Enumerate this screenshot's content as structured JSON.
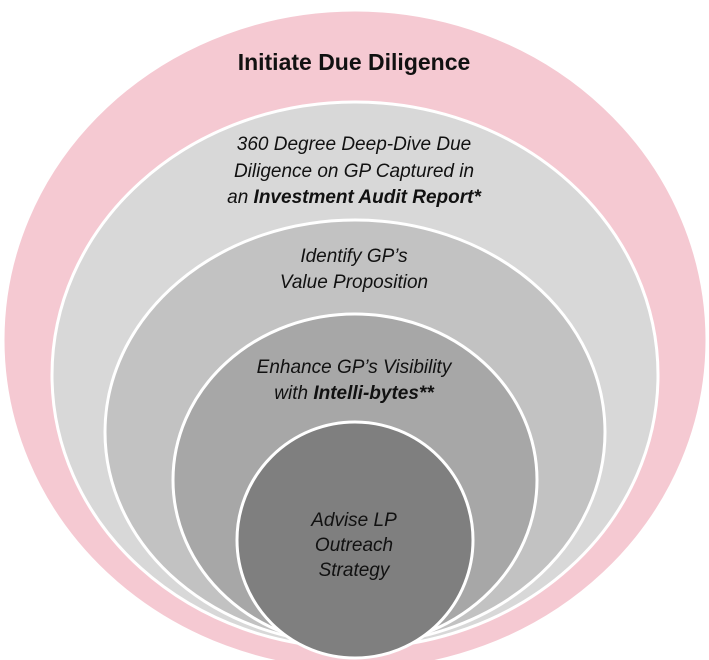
{
  "diagram": {
    "title": "Initiate Due Diligence",
    "layers": [
      {
        "id": "outer",
        "color": "#f5c9d2",
        "lines": [
          [
            {
              "text": "Initiate Due Diligence",
              "bold": true
            }
          ]
        ]
      },
      {
        "id": "deep-dive",
        "color": "#d8d8d8",
        "lines": [
          [
            {
              "text": "360 Degree Deep-Dive Due"
            }
          ],
          [
            {
              "text": "Diligence on GP Captured in"
            }
          ],
          [
            {
              "text": "an "
            },
            {
              "text": "Investment Audit Report*",
              "bold": true
            }
          ]
        ]
      },
      {
        "id": "value-proposition",
        "color": "#c2c2c2",
        "lines": [
          [
            {
              "text": "Identify GP’s"
            }
          ],
          [
            {
              "text": "Value Proposition"
            }
          ]
        ]
      },
      {
        "id": "visibility",
        "color": "#a7a7a7",
        "lines": [
          [
            {
              "text": "Enhance GP’s Visibility"
            }
          ],
          [
            {
              "text": "with "
            },
            {
              "text": "Intelli-bytes**",
              "bold": true
            }
          ]
        ]
      },
      {
        "id": "lp-outreach",
        "color": "#7f7f7f",
        "lines": [
          [
            {
              "text": "Advise LP"
            }
          ],
          [
            {
              "text": "Outreach"
            }
          ],
          [
            {
              "text": "Strategy"
            }
          ]
        ]
      }
    ]
  }
}
